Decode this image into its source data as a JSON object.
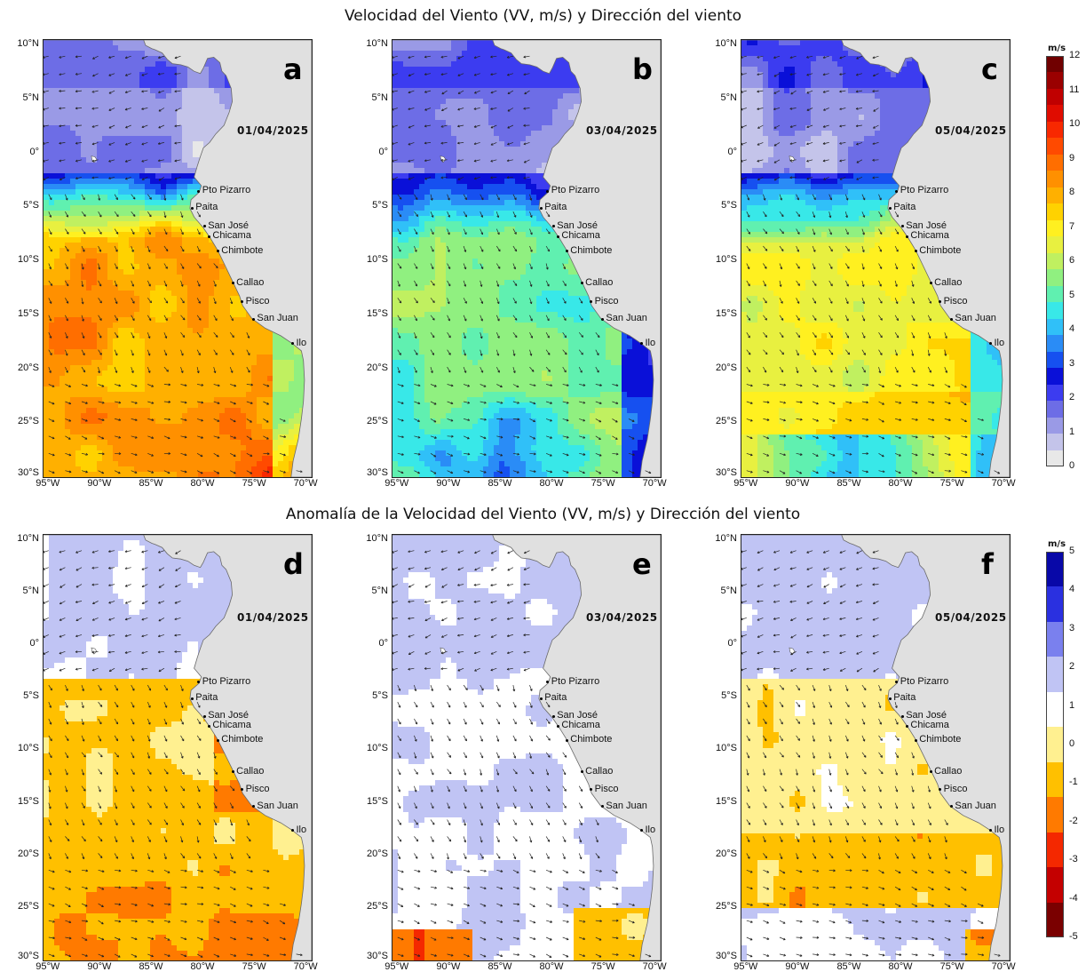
{
  "titles": {
    "top": "Velocidad del Viento (VV, m/s) y Dirección del viento",
    "bottom": "Anomalía de la Velocidad del Viento (VV, m/s) y Dirección del viento"
  },
  "axes": {
    "lat_ticks": [
      "10°N",
      "5°N",
      "0°",
      "5°S",
      "10°S",
      "15°S",
      "20°S",
      "25°S",
      "30°S"
    ],
    "lon_ticks": [
      "95°W",
      "90°W",
      "85°W",
      "80°W",
      "75°W",
      "70°W"
    ],
    "lat_range": [
      -30,
      10.5
    ],
    "lon_range": [
      -95.5,
      -69.5
    ]
  },
  "ports": [
    "Pto Pizarro",
    "Paita",
    "San José",
    "Chicama",
    "Chimbote",
    "Callao",
    "Pisco",
    "San Juan",
    "Ilo"
  ],
  "panels": [
    {
      "letter": "a",
      "date": "01/04/2025",
      "variable": "speed",
      "state": "strong"
    },
    {
      "letter": "b",
      "date": "03/04/2025",
      "variable": "speed",
      "state": "weak"
    },
    {
      "letter": "c",
      "date": "05/04/2025",
      "variable": "speed",
      "state": "medium"
    },
    {
      "letter": "d",
      "date": "01/04/2025",
      "variable": "anomaly",
      "state": "positive"
    },
    {
      "letter": "e",
      "date": "03/04/2025",
      "variable": "anomaly",
      "state": "negative"
    },
    {
      "letter": "f",
      "date": "05/04/2025",
      "variable": "anomaly",
      "state": "mixed"
    }
  ],
  "colorbars": {
    "speed": {
      "unit": "m/s",
      "ticks": [
        "0",
        "1",
        "2",
        "3",
        "4",
        "5",
        "6",
        "7",
        "8",
        "9",
        "10",
        "11",
        "12"
      ],
      "colors": [
        "#e8e8e8",
        "#c4c4ea",
        "#9a9ae6",
        "#6d6de6",
        "#3c3cf0",
        "#0a10d8",
        "#1650f0",
        "#2a8cf6",
        "#30c0f8",
        "#38e8e8",
        "#60f0b0",
        "#90f080",
        "#c0f060",
        "#e8f040",
        "#fff020",
        "#ffd200",
        "#ffb000",
        "#ff9000",
        "#ff6e00",
        "#ff4a00",
        "#f82800",
        "#e00c00",
        "#c00000",
        "#9a0000",
        "#700000"
      ]
    },
    "anomaly": {
      "unit": "m/s",
      "ticks": [
        "5",
        "4",
        "3",
        "2",
        "1",
        "0",
        "-1",
        "-2",
        "-3",
        "-4",
        "-5"
      ],
      "colors": [
        "#7a0000",
        "#c40000",
        "#f42800",
        "#ff7a00",
        "#ffc000",
        "#fff090",
        "#ffffff",
        "#c0c4f4",
        "#7a80ee",
        "#2a30e0",
        "#0808a8"
      ]
    }
  }
}
